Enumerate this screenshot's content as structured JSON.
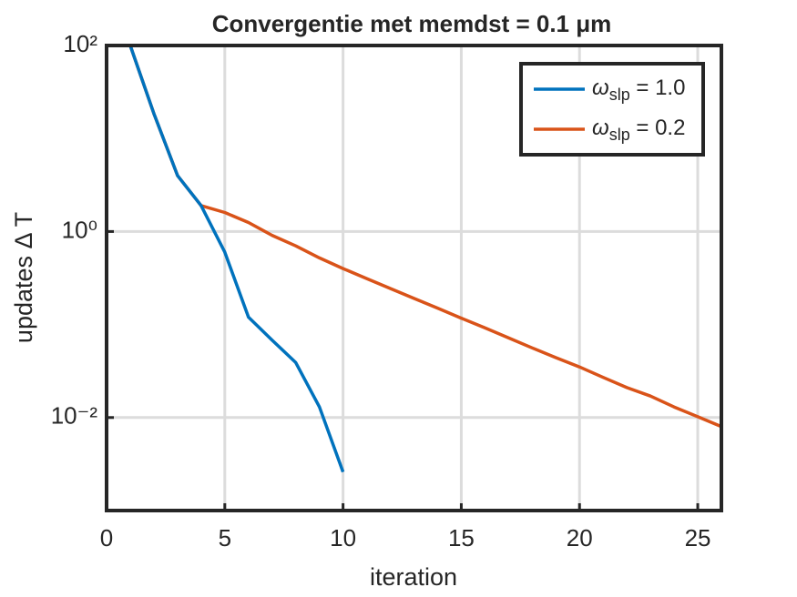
{
  "chart_data": {
    "type": "line",
    "title": "Convergentie met memdst = 0.1 μm",
    "xlabel": "iteration",
    "ylabel": "updates Δ T",
    "xlim": [
      0,
      26
    ],
    "xticks": [
      0,
      5,
      10,
      15,
      20,
      25
    ],
    "ylim": [
      0.001,
      100
    ],
    "yscale": "log",
    "yticks": [
      {
        "value": 0.01,
        "label": "10⁻²"
      },
      {
        "value": 1,
        "label": "10⁰"
      },
      {
        "value": 100,
        "label": "10²"
      }
    ],
    "grid": true,
    "legend": "northeast",
    "series": [
      {
        "name": "ωslp = 1.0",
        "color": "#0072bd",
        "x": [
          1,
          2,
          3,
          4,
          5,
          6,
          7,
          8,
          9,
          10
        ],
        "values": [
          100,
          18.6,
          4.0,
          1.9,
          0.6,
          0.12,
          0.068,
          0.039,
          0.013,
          0.0026
        ]
      },
      {
        "name": "ωslp = 0.2",
        "color": "#d95319",
        "x": [
          1,
          2,
          3,
          4,
          5,
          6,
          7,
          8,
          9,
          10,
          11,
          12,
          13,
          14,
          15,
          16,
          17,
          18,
          19,
          20,
          21,
          22,
          23,
          24,
          25,
          26
        ],
        "values": [
          100,
          18.6,
          4.0,
          1.9,
          1.6,
          1.25,
          0.91,
          0.7,
          0.52,
          0.4,
          0.312,
          0.244,
          0.191,
          0.15,
          0.117,
          0.092,
          0.072,
          0.056,
          0.044,
          0.035,
          0.027,
          0.021,
          0.017,
          0.013,
          0.0102,
          0.008
        ]
      }
    ]
  }
}
